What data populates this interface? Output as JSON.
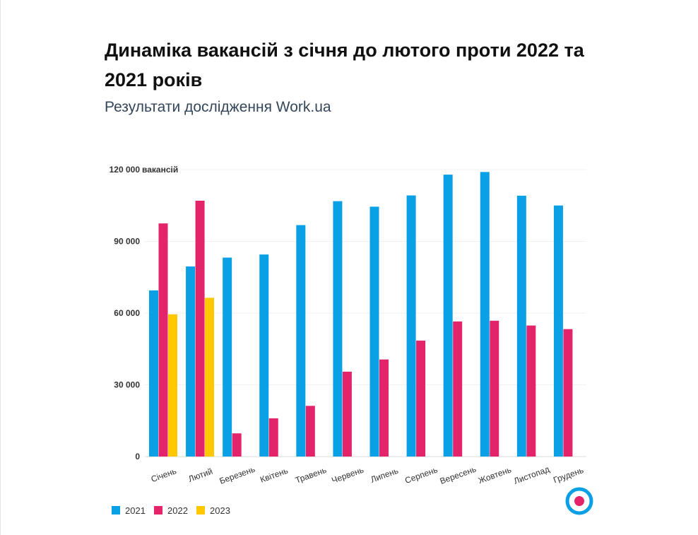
{
  "page": {
    "title": "Динаміка вакансій з січня до лютого проти 2022 та 2021 років",
    "subtitle": "Результати дослідження Work.ua"
  },
  "logo": {
    "icon": "target-logo-icon",
    "outer_color": "#0aa0e6",
    "inner_color": "#e3246a"
  },
  "chart_data": {
    "type": "bar",
    "title": "Динаміка вакансій з січня до лютого проти 2022 та 2021 років",
    "subtitle": "Результати дослідження Work.ua",
    "ylabel": "вакансій",
    "ylim": [
      0,
      120000
    ],
    "yticks": [
      0,
      30000,
      60000,
      90000,
      120000
    ],
    "ytick_labels": [
      "0",
      "30 000",
      "60 000",
      "90 000",
      "120 000"
    ],
    "grid": true,
    "legend_position": "bottom-left",
    "categories": [
      "Січень",
      "Лютий",
      "Березень",
      "Квітень",
      "Травень",
      "Червень",
      "Липень",
      "Серпень",
      "Вересень",
      "Жовтень",
      "Листопад",
      "Грудень"
    ],
    "series": [
      {
        "name": "2021",
        "color": "#0aa0e6",
        "values": [
          69500,
          79500,
          83200,
          84500,
          96800,
          106800,
          104500,
          109200,
          117900,
          119000,
          109100,
          105000
        ]
      },
      {
        "name": "2022",
        "color": "#e3246a",
        "values": [
          97500,
          107000,
          9700,
          16000,
          21200,
          35500,
          40600,
          48500,
          56500,
          56800,
          54800,
          53300
        ]
      },
      {
        "name": "2023",
        "color": "#ffc800",
        "values": [
          59500,
          66400,
          null,
          null,
          null,
          null,
          null,
          null,
          null,
          null,
          null,
          null
        ]
      }
    ]
  }
}
